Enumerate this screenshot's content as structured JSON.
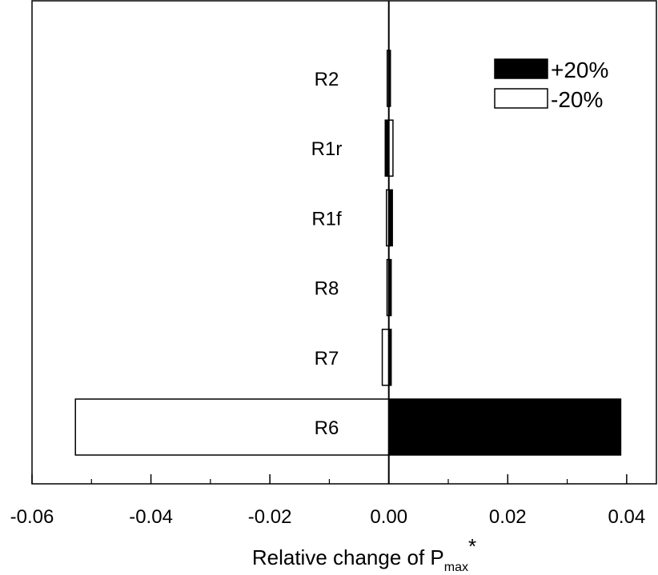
{
  "chart_data": {
    "type": "bar",
    "orientation": "horizontal",
    "categories": [
      "R2",
      "R1r",
      "R1f",
      "R8",
      "R7",
      "R6"
    ],
    "series": [
      {
        "name": "+20%",
        "color": "#000000",
        "values": [
          0.0002,
          -0.0006,
          0.0006,
          0.0004,
          0.0004,
          0.039
        ]
      },
      {
        "name": "-20%",
        "color": "#ffffff",
        "values": [
          -0.0002,
          0.0007,
          -0.0004,
          -0.0003,
          -0.0011,
          -0.0527
        ]
      }
    ],
    "xlabel_main": "Relative change of P",
    "xlabel_sub": "max",
    "xlabel_sup": "*",
    "xlim": [
      -0.06,
      0.045
    ],
    "xticks": [
      -0.06,
      -0.04,
      -0.02,
      0.0,
      0.02,
      0.04
    ],
    "xtick_labels": [
      "-0.06",
      "-0.04",
      "-0.02",
      "0.00",
      "0.02",
      "0.04"
    ],
    "legend_position": "top-right",
    "grid": false
  }
}
